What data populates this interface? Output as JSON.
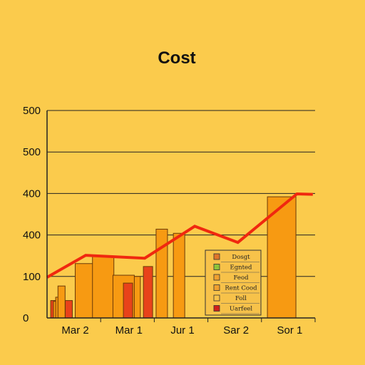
{
  "colors": {
    "background": "#fbcb4c",
    "bar_orange": "#f79a12",
    "bar_red": "#e8421a",
    "line": "#f0280f",
    "grid": "#222222",
    "legend_bg": "#f7c24a"
  },
  "chart_data": {
    "type": "bar",
    "title": "Cost",
    "y_tick_labels": [
      "0",
      "100",
      "400",
      "400",
      "500",
      "500"
    ],
    "x_tick_labels": [
      "Mar 2",
      "Mar 1",
      "Jur 1",
      "Sar 2",
      "Sor 1"
    ],
    "ylim": [
      0,
      500
    ],
    "grid": true,
    "legend_position": "center-right",
    "bar_series": [
      {
        "color": "bar_red",
        "values": [
          [
            0.08,
            42
          ],
          [
            0.4,
            42
          ]
        ]
      },
      {
        "color": "bar_orange",
        "values": [
          [
            0.14,
            40
          ],
          [
            0.19,
            50
          ],
          [
            0.24,
            77
          ],
          [
            0.62,
            131
          ],
          [
            1.25,
            80
          ],
          [
            1.85,
            100
          ]
        ]
      },
      {
        "color": "bar_orange",
        "values": [
          [
            1.0,
            148
          ],
          [
            1.45,
            103
          ],
          [
            2.4,
            214
          ],
          [
            2.78,
            204
          ],
          [
            4.85,
            292
          ]
        ]
      },
      {
        "color": "bar_red",
        "values": [
          [
            1.68,
            84
          ],
          [
            2.12,
            124
          ]
        ]
      }
    ],
    "line_series": {
      "x": [
        0,
        0.85,
        2.15,
        3.25,
        4.2,
        5.5,
        5.85
      ],
      "y": [
        98,
        151,
        144,
        221,
        182,
        299,
        298
      ]
    },
    "legend": [
      {
        "label": "Dosgt",
        "color": "#e0762a"
      },
      {
        "label": "Egnted",
        "color": "#8ec43a"
      },
      {
        "label": "Feod",
        "color": "#f0a030"
      },
      {
        "label": "Rent Cood",
        "color": "#f0a030"
      },
      {
        "label": "Foll",
        "color": "#f7c24a"
      },
      {
        "label": "Uarfeel",
        "color": "#d0201a"
      }
    ]
  }
}
